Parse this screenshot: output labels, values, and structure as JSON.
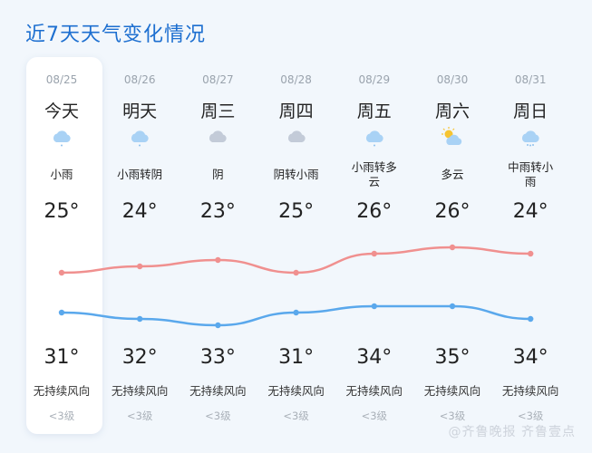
{
  "title": "近7天天气变化情况",
  "days": [
    {
      "date": "08/25",
      "day": "今天",
      "icon": "light-rain-icon",
      "condition": "小雨",
      "low": "25°",
      "high": "31°",
      "wind": "无持续风向",
      "level": "<3级",
      "low_value": 25,
      "high_value": 31,
      "selected": true
    },
    {
      "date": "08/26",
      "day": "明天",
      "icon": "light-rain-icon",
      "condition": "小雨转阴",
      "low": "24°",
      "high": "32°",
      "wind": "无持续风向",
      "level": "<3级",
      "low_value": 24,
      "high_value": 32
    },
    {
      "date": "08/27",
      "day": "周三",
      "icon": "overcast-icon",
      "condition": "阴",
      "low": "23°",
      "high": "33°",
      "wind": "无持续风向",
      "level": "<3级",
      "low_value": 23,
      "high_value": 33
    },
    {
      "date": "08/28",
      "day": "周四",
      "icon": "overcast-icon",
      "condition": "阴转小雨",
      "low": "25°",
      "high": "31°",
      "wind": "无持续风向",
      "level": "<3级",
      "low_value": 25,
      "high_value": 31
    },
    {
      "date": "08/29",
      "day": "周五",
      "icon": "light-rain-icon",
      "condition": "小雨转多云",
      "low": "26°",
      "high": "34°",
      "wind": "无持续风向",
      "level": "<3级",
      "low_value": 26,
      "high_value": 34
    },
    {
      "date": "08/30",
      "day": "周六",
      "icon": "partly-cloudy-icon",
      "condition": "多云",
      "low": "26°",
      "high": "35°",
      "wind": "无持续风向",
      "level": "<3级",
      "low_value": 26,
      "high_value": 35
    },
    {
      "date": "08/31",
      "day": "周日",
      "icon": "moderate-rain-icon",
      "condition": "中雨转小雨",
      "low": "24°",
      "high": "34°",
      "wind": "无持续风向",
      "level": "<3级",
      "low_value": 24,
      "high_value": 34
    }
  ],
  "colors": {
    "high_line": "#f0908f",
    "low_line": "#5aa8ec",
    "title": "#1d6fd0"
  },
  "watermark": "@齐鲁晚报 齐鲁壹点"
}
